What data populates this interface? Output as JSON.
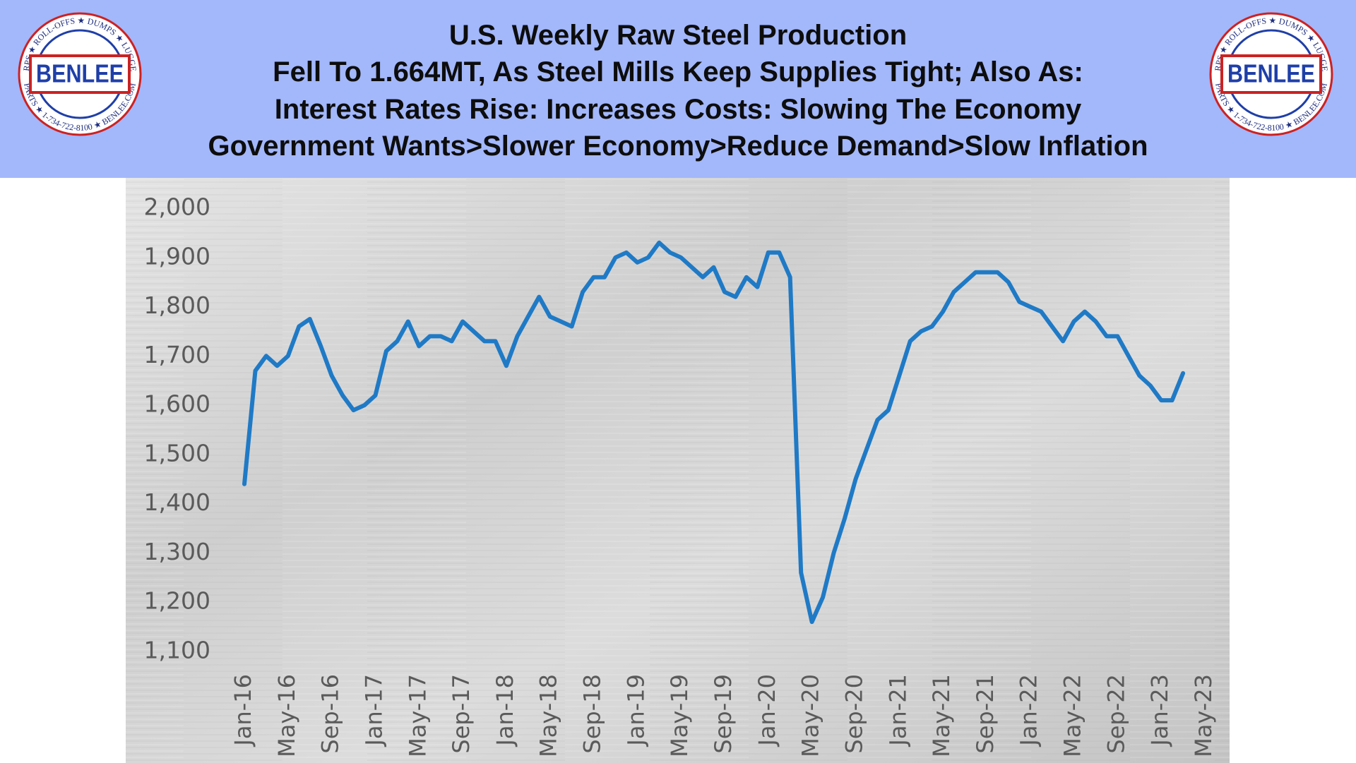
{
  "chart_data": {
    "type": "line",
    "title_lines": [
      "U.S. Weekly Raw Steel Production",
      "Fell To 1.664MT, As Steel Mills Keep Supplies Tight; Also As:",
      "Interest Rates Rise: Increases Costs: Slowing The Economy",
      "Government Wants>Slower Economy>Reduce Demand>Slow Inflation"
    ],
    "logo": {
      "name": "BENLEE",
      "ring_top": "TARPS ★ ROLL-OFFS ★ DUMPS ★ LUGGERS",
      "ring_bottom": "PARTS ★ 1-734-722-8100 ★ BENLEE.COM"
    },
    "categories": [
      "Jan-16",
      null,
      null,
      null,
      "May-16",
      null,
      null,
      null,
      "Sep-16",
      null,
      null,
      null,
      "Jan-17",
      null,
      null,
      null,
      "May-17",
      null,
      null,
      null,
      "Sep-17",
      null,
      null,
      null,
      "Jan-18",
      null,
      null,
      null,
      "May-18",
      null,
      null,
      null,
      "Sep-18",
      null,
      null,
      null,
      "Jan-19",
      null,
      null,
      null,
      "May-19",
      null,
      null,
      null,
      "Sep-19",
      null,
      null,
      null,
      "Jan-20",
      null,
      null,
      null,
      "May-20",
      null,
      null,
      null,
      "Sep-20",
      null,
      null,
      null,
      "Jan-21",
      null,
      null,
      null,
      "May-21",
      null,
      null,
      null,
      "Sep-21",
      null,
      null,
      null,
      "Jan-22",
      null,
      null,
      null,
      "May-22",
      null,
      null,
      null,
      "Sep-22",
      null,
      null,
      null,
      "Jan-23",
      null,
      null,
      null,
      "May-23"
    ],
    "series": [
      {
        "color": "#1f7ac6",
        "values": [
          1440,
          1670,
          1700,
          1680,
          1700,
          1760,
          1775,
          1720,
          1660,
          1620,
          1590,
          1600,
          1620,
          1710,
          1730,
          1770,
          1720,
          1740,
          1740,
          1730,
          1770,
          1750,
          1730,
          1730,
          1680,
          1740,
          1780,
          1820,
          1780,
          1770,
          1760,
          1830,
          1860,
          1860,
          1900,
          1910,
          1890,
          1900,
          1930,
          1910,
          1900,
          1880,
          1860,
          1880,
          1830,
          1820,
          1860,
          1840,
          1910,
          1910,
          1860,
          1260,
          1160,
          1210,
          1300,
          1370,
          1450,
          1510,
          1570,
          1590,
          1660,
          1730,
          1750,
          1760,
          1790,
          1830,
          1850,
          1870,
          1870,
          1870,
          1850,
          1810,
          1800,
          1790,
          1760,
          1730,
          1770,
          1790,
          1770,
          1740,
          1740,
          1700,
          1660,
          1640,
          1610,
          1610,
          1665,
          null,
          null
        ]
      }
    ],
    "ylim": [
      1100,
      2000
    ],
    "yticks": [
      {
        "value": 1100,
        "label": "1,100"
      },
      {
        "value": 1200,
        "label": "1,200"
      },
      {
        "value": 1300,
        "label": "1,300"
      },
      {
        "value": 1400,
        "label": "1,400"
      },
      {
        "value": 1500,
        "label": "1,500"
      },
      {
        "value": 1600,
        "label": "1,600"
      },
      {
        "value": 1700,
        "label": "1,700"
      },
      {
        "value": 1800,
        "label": "1,800"
      },
      {
        "value": 1900,
        "label": "1,900"
      },
      {
        "value": 2000,
        "label": "2,000"
      }
    ],
    "grid": false
  }
}
